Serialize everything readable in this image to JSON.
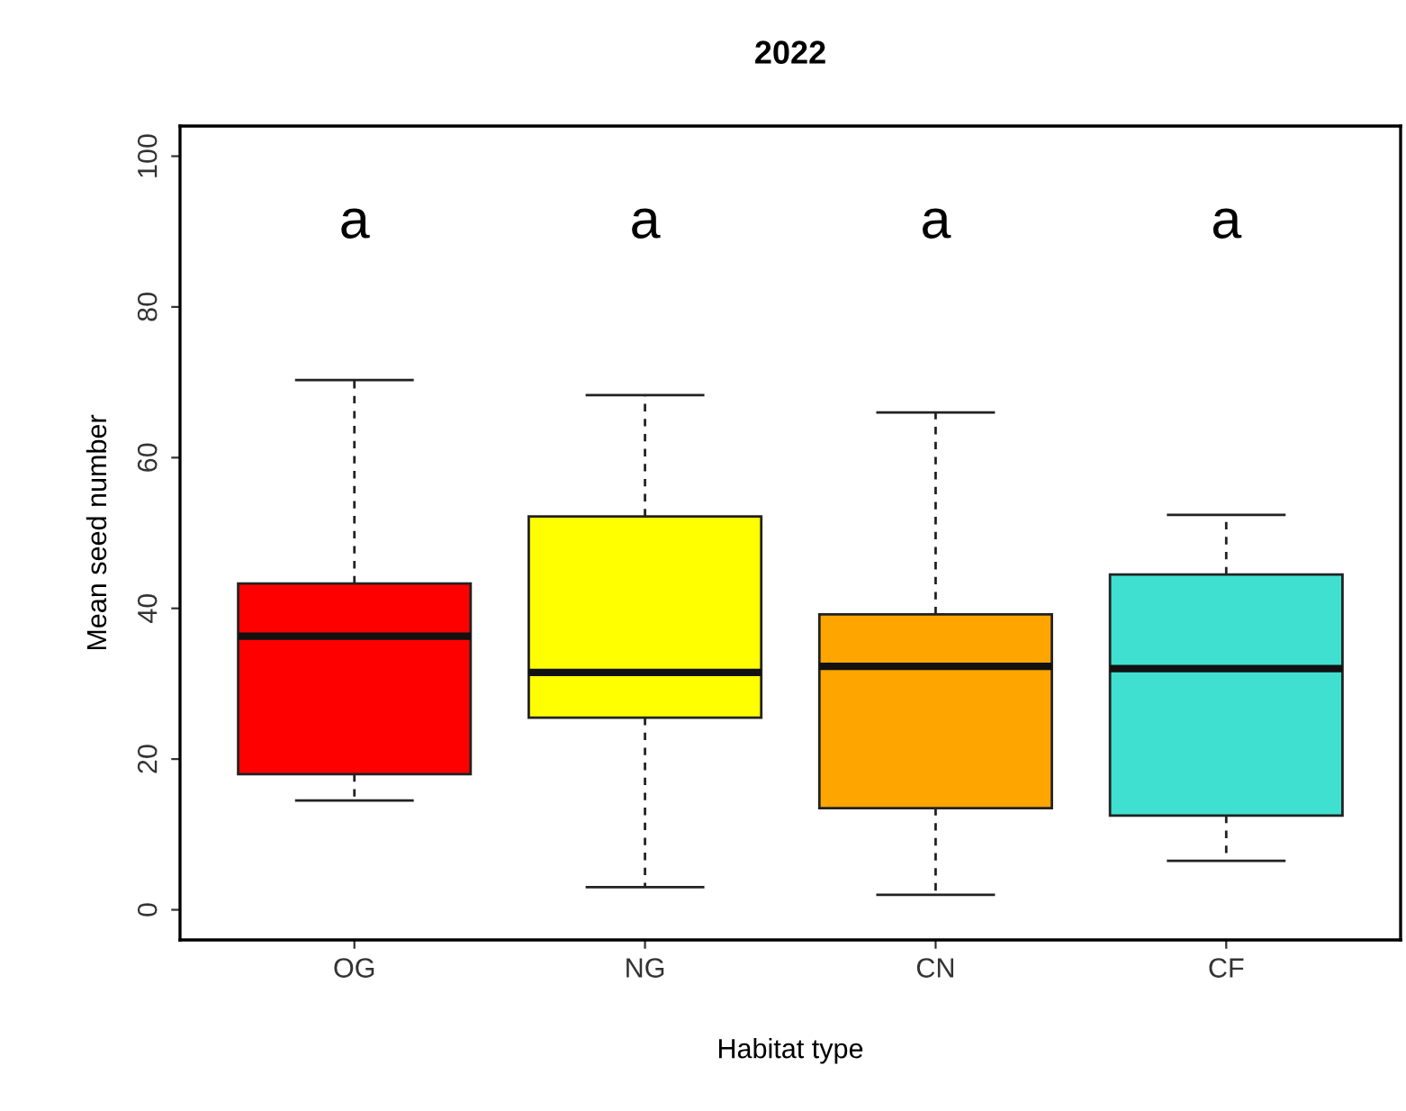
{
  "chart_data": {
    "type": "box",
    "title": "2022",
    "xlabel": "Habitat type",
    "ylabel": "Mean seed number",
    "categories": [
      "OG",
      "NG",
      "CN",
      "CF"
    ],
    "colors": [
      "#ff0000",
      "#ffff00",
      "#ffa500",
      "#40e0d0"
    ],
    "boxes": [
      {
        "low": 14.5,
        "q1": 18,
        "median": 36.3,
        "q3": 43.3,
        "high": 70.3
      },
      {
        "low": 3,
        "q1": 25.5,
        "median": 31.5,
        "q3": 52.2,
        "high": 68.3
      },
      {
        "low": 2,
        "q1": 13.5,
        "median": 32.3,
        "q3": 39.2,
        "high": 66
      },
      {
        "low": 6.5,
        "q1": 12.5,
        "median": 32,
        "q3": 44.5,
        "high": 52.4
      }
    ],
    "ylim": [
      -4,
      104
    ],
    "yticks": [
      0,
      20,
      40,
      60,
      80,
      100
    ],
    "grid": false,
    "annotations": [
      "a",
      "a",
      "a",
      "a"
    ]
  }
}
